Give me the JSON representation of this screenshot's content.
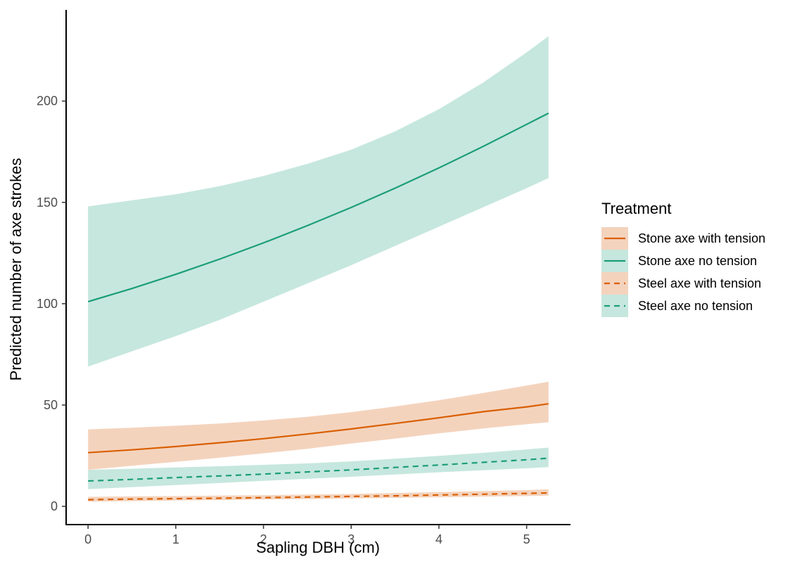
{
  "chart_data": {
    "type": "line",
    "xlabel": "Sapling DBH (cm)",
    "ylabel": "Predicted number of axe strokes",
    "xlim": [
      -0.25,
      5.5
    ],
    "ylim": [
      -9,
      245
    ],
    "x_ticks": [
      0,
      1,
      2,
      3,
      4,
      5
    ],
    "y_ticks": [
      0,
      50,
      100,
      150,
      200
    ],
    "x": [
      0,
      0.5,
      1,
      1.5,
      2,
      2.5,
      3,
      3.5,
      4,
      4.5,
      5,
      5.25
    ],
    "grid": false,
    "legend": {
      "title": "Treatment",
      "position": "right"
    },
    "series": [
      {
        "name": "Stone axe with tension",
        "color": "#d95f02",
        "fill": "#f4d3bd",
        "linestyle": "solid",
        "values": [
          26.5,
          27.9,
          29.5,
          31.4,
          33.4,
          35.7,
          38.2,
          40.9,
          43.7,
          46.7,
          49.1,
          50.6
        ],
        "lower": [
          18.0,
          20.0,
          22.0,
          24.0,
          26.2,
          28.4,
          31.0,
          33.4,
          36.0,
          38.4,
          40.5,
          41.5
        ],
        "upper": [
          38.0,
          38.8,
          39.8,
          40.9,
          42.4,
          44.2,
          46.5,
          49.3,
          52.4,
          55.9,
          59.6,
          61.5
        ]
      },
      {
        "name": "Stone axe no tension",
        "color": "#1b9e77",
        "fill": "#c6e7de",
        "linestyle": "solid",
        "values": [
          101,
          107.5,
          114.5,
          122,
          130,
          138.5,
          147.5,
          157,
          167,
          177.5,
          188.5,
          194
        ],
        "lower": [
          69,
          76.5,
          84,
          92,
          101,
          110,
          119,
          128.5,
          138,
          147.5,
          157,
          162
        ],
        "upper": [
          148,
          151,
          154,
          158,
          163,
          169,
          176,
          185,
          196,
          209,
          224,
          232
        ]
      },
      {
        "name": "Steel axe with tension",
        "color": "#d95f02",
        "fill": "#f4d3bd",
        "linestyle": "dashed",
        "values": [
          3.3,
          3.6,
          3.8,
          4.0,
          4.3,
          4.6,
          4.9,
          5.2,
          5.6,
          6.0,
          6.4,
          6.6
        ],
        "lower": [
          2.3,
          2.6,
          2.9,
          3.1,
          3.4,
          3.6,
          3.9,
          4.2,
          4.5,
          4.8,
          5.1,
          5.3
        ],
        "upper": [
          4.7,
          4.9,
          5.1,
          5.3,
          5.5,
          5.8,
          6.1,
          6.6,
          7.0,
          7.5,
          8.0,
          8.4
        ]
      },
      {
        "name": "Steel axe no tension",
        "color": "#1b9e77",
        "fill": "#c6e7de",
        "linestyle": "dashed",
        "values": [
          12.5,
          13.3,
          14.2,
          15.0,
          15.9,
          17.0,
          18.0,
          19.2,
          20.4,
          21.7,
          23.0,
          23.8
        ],
        "lower": [
          8.5,
          9.5,
          10.5,
          11.5,
          12.6,
          13.6,
          14.6,
          15.7,
          16.8,
          17.8,
          18.8,
          19.4
        ],
        "upper": [
          18.0,
          18.6,
          19.2,
          19.8,
          20.5,
          21.2,
          22.2,
          23.5,
          24.9,
          26.4,
          28.1,
          29.0
        ]
      }
    ]
  }
}
